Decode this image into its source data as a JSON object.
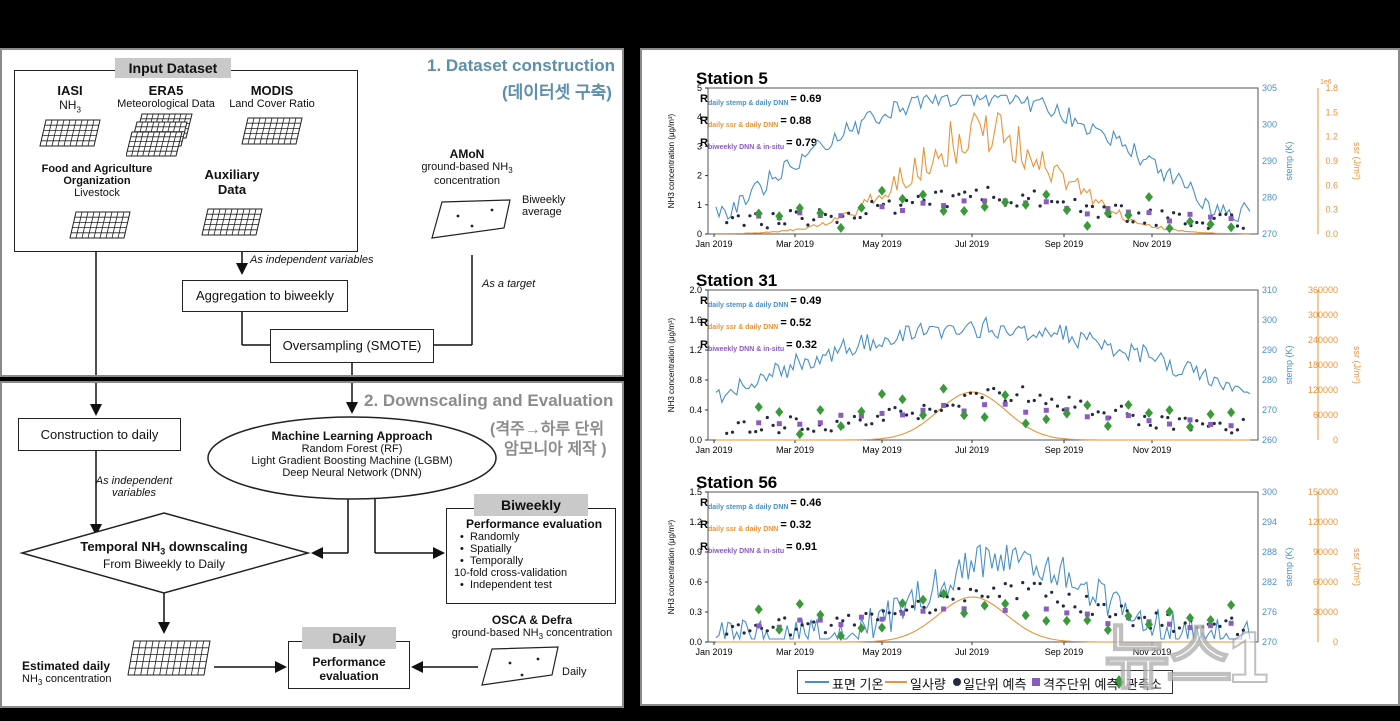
{
  "left_top": {
    "section_title": "1. Dataset construction",
    "section_subtitle": "(데이터셋 구축)",
    "input_header": "Input Dataset",
    "iasi": {
      "name": "IASI",
      "sub": "NH",
      "sub_num": "3"
    },
    "era5": {
      "name": "ERA5",
      "sub": "Meteorological Data"
    },
    "modis": {
      "name": "MODIS",
      "sub": "Land Cover Ratio"
    },
    "fao": {
      "name1": "Food and Agriculture",
      "name2": "Organization",
      "sub": "Livestock"
    },
    "aux": {
      "name1": "Auxiliary",
      "name2": "Data"
    },
    "amon": {
      "name": "AMoN",
      "sub1": "ground-based NH",
      "sub_num": "3",
      "sub2": "concentration"
    },
    "biweekly_avg1": "Biweekly",
    "biweekly_avg2": "average",
    "as_independent": "As independent variables",
    "as_target": "As a target",
    "aggregation": "Aggregation to biweekly",
    "oversampling": "Oversampling (SMOTE)"
  },
  "left_bot": {
    "section_title": "2. Downscaling and Evaluation",
    "section_subtitle1": "(격주→하루 단위",
    "section_subtitle2": "암모니아 제작 )",
    "construction_daily": "Construction to daily",
    "as_indep1": "As independent",
    "as_indep2": "variables",
    "ml_title": "Machine Learning Approach",
    "ml_items": [
      "Random Forest (RF)",
      "Light Gradient Boosting Machine (LGBM)",
      "Deep Neural Network (DNN)"
    ],
    "downscaling_title_a": "Temporal NH",
    "downscaling_title_num": "3",
    "downscaling_title_b": " downscaling",
    "downscaling_sub": "From Biweekly to Daily",
    "biweekly_header": "Biweekly",
    "perf_eval_title": "Performance evaluation",
    "perf_items": [
      "Randomly",
      "Spatially",
      "Temporally"
    ],
    "cv": "10-fold cross-validation",
    "indep_test": "Independent test",
    "osca": {
      "name": "OSCA & Defra",
      "sub1": "ground-based NH",
      "sub_num": "3",
      "sub2": " concentration"
    },
    "daily_label": "Daily",
    "daily_header": "Daily",
    "daily_perf1": "Performance",
    "daily_perf2": "evaluation",
    "estimated1": "Estimated daily",
    "estimated2a": "NH",
    "estimated2num": "3",
    "estimated2b": " concentration"
  },
  "chart_data": [
    {
      "type": "line",
      "title": "Station 5",
      "ylabel": "NH3 concentration (μg/m³)",
      "y2label": "stemp (K)",
      "y3label": "ssr (J/m²)",
      "y3_multiplier": "1e6",
      "yticks": [
        "0",
        "1",
        "2",
        "3",
        "4",
        "5"
      ],
      "y2ticks": [
        "270",
        "280",
        "290",
        "300",
        "305"
      ],
      "y3ticks": [
        "0.0",
        "0.3",
        "0.6",
        "0.9",
        "1.2",
        "1.5",
        "1.8"
      ],
      "xticks": [
        "Jan 2019",
        "Mar 2019",
        "May 2019",
        "Jul 2019",
        "Sep 2019",
        "Nov 2019"
      ],
      "stats": [
        {
          "r": "R",
          "sub": "daily stemp & daily DNN",
          "val": "= 0.69",
          "color": "#4a90c4"
        },
        {
          "r": "R",
          "sub": "daily ssr & daily DNN",
          "val": "= 0.88",
          "color": "#e8943a"
        },
        {
          "r": "R",
          "sub": "biweekly DNN & in-situ",
          "val": "= 0.79",
          "color": "#8a5bc0"
        }
      ]
    },
    {
      "type": "line",
      "title": "Station 31",
      "ylabel": "NH3 concentration (μg/m³)",
      "y2label": "stemp (K)",
      "y3label": "ssr (J/m²)",
      "yticks": [
        "0.0",
        "0.4",
        "0.8",
        "1.2",
        "1.6",
        "2.0"
      ],
      "y2ticks": [
        "260",
        "270",
        "280",
        "290",
        "300",
        "310"
      ],
      "y3ticks": [
        "0",
        "60000",
        "120000",
        "180000",
        "240000",
        "300000",
        "360000"
      ],
      "xticks": [
        "Jan 2019",
        "Mar 2019",
        "May 2019",
        "Jul 2019",
        "Sep 2019",
        "Nov 2019"
      ],
      "stats": [
        {
          "r": "R",
          "sub": "daily stemp & daily DNN",
          "val": "= 0.49",
          "color": "#4a90c4"
        },
        {
          "r": "R",
          "sub": "daily ssr & daily DNN",
          "val": "= 0.52",
          "color": "#e8943a"
        },
        {
          "r": "R",
          "sub": "biweekly DNN & in-situ",
          "val": "= 0.32",
          "color": "#8a5bc0"
        }
      ]
    },
    {
      "type": "line",
      "title": "Station 56",
      "ylabel": "NH3 concentration (μg/m³)",
      "y2label": "stemp (K)",
      "y3label": "ssr (J/m²)",
      "yticks": [
        "0.0",
        "0.3",
        "0.6",
        "0.9",
        "1.2",
        "1.5"
      ],
      "y2ticks": [
        "270",
        "276",
        "282",
        "288",
        "294",
        "300"
      ],
      "y3ticks": [
        "0",
        "30000",
        "60000",
        "90000",
        "120000",
        "150000"
      ],
      "xticks": [
        "Jan 2019",
        "Mar 2019",
        "May 2019",
        "Jul 2019",
        "Sep 2019",
        "Nov 2019"
      ],
      "stats": [
        {
          "r": "R",
          "sub": "daily stemp & daily DNN",
          "val": "= 0.46",
          "color": "#4a90c4"
        },
        {
          "r": "R",
          "sub": "daily ssr & daily DNN",
          "val": "= 0.32",
          "color": "#e8943a"
        },
        {
          "r": "R",
          "sub": "biweekly DNN & in-situ",
          "val": "= 0.91",
          "color": "#8a5bc0"
        }
      ]
    }
  ],
  "legend": [
    {
      "label": "표면 기온",
      "kind": "line",
      "color": "#4a90c4"
    },
    {
      "label": "일사량",
      "kind": "line",
      "color": "#e8943a"
    },
    {
      "label": "일단위 예측",
      "kind": "dot",
      "color": "#222a40"
    },
    {
      "label": "격주단위 예측",
      "kind": "square",
      "color": "#8a5bc0"
    },
    {
      "label": "관측소",
      "kind": "diamond",
      "color": "#3a9a3a"
    }
  ],
  "watermark": "뉴스1",
  "colors": {
    "stemp": "#4a90c4",
    "ssr": "#e8943a",
    "daily": "#222a40",
    "biweekly": "#8a5bc0",
    "insitu": "#3a9a3a"
  }
}
